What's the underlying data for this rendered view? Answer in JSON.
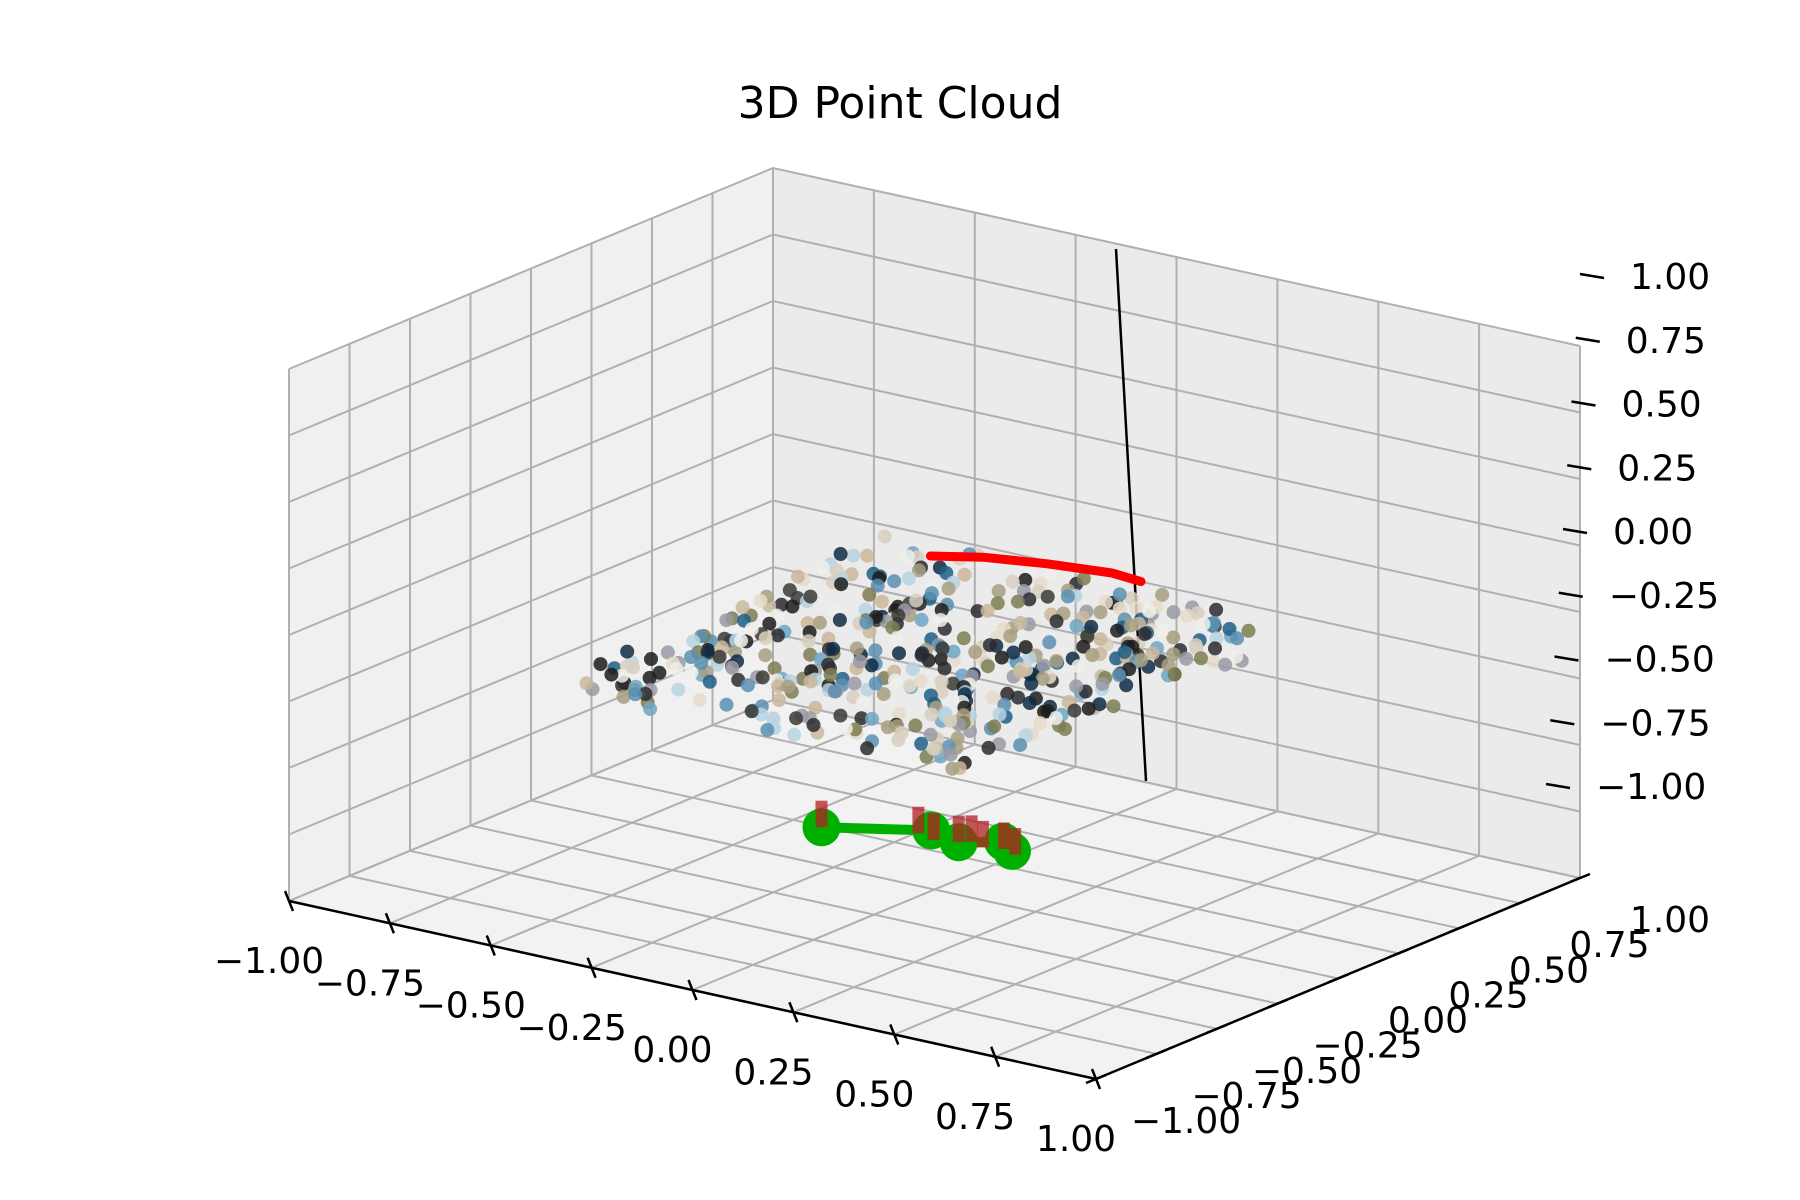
{
  "chart_data": {
    "type": "scatter",
    "projection": "3d",
    "title": "3D Point Cloud",
    "xlabel": "",
    "ylabel": "",
    "zlabel": "",
    "xlim": [
      -1.0,
      1.0
    ],
    "ylim": [
      -1.0,
      1.0
    ],
    "zlim": [
      -1.0,
      1.0
    ],
    "grid": true,
    "pane_color": "#f2f2f2",
    "x_ticks": [
      -1.0,
      -0.75,
      -0.5,
      -0.25,
      0.0,
      0.25,
      0.5,
      0.75,
      1.0
    ],
    "y_ticks": [
      -1.0,
      -0.75,
      -0.5,
      -0.25,
      0.0,
      0.25,
      0.5,
      0.75,
      1.0
    ],
    "z_ticks": [
      -1.0,
      -0.75,
      -0.5,
      -0.25,
      0.0,
      0.25,
      0.5,
      0.75,
      1.0
    ],
    "x_tick_labels": [
      "−1.00",
      "−0.75",
      "−0.50",
      "−0.25",
      "0.00",
      "0.25",
      "0.50",
      "0.75",
      "1.00"
    ],
    "y_tick_labels": [
      "−1.00",
      "−0.75",
      "−0.50",
      "−0.25",
      "0.00",
      "0.25",
      "0.50",
      "0.75",
      "1.00"
    ],
    "z_tick_labels": [
      "−1.00",
      "−0.75",
      "−0.50",
      "−0.25",
      "0.00",
      "0.25",
      "0.50",
      "0.75",
      "1.00"
    ],
    "series": [
      {
        "kind": "colored_point_cloud",
        "color_palette": [
          "#1c1c1c",
          "#3a3a36",
          "#e8dccb",
          "#c9b79a",
          "#1f5f86",
          "#6fa6c4",
          "#b7d3e2",
          "#7d7e52",
          "#2a2a30",
          "#9a9aa6",
          "#d8d0c0",
          "#0f2c44",
          "#a89f80",
          "#5b8fb0",
          "#eeeeea"
        ],
        "center": [
          -0.05,
          0.05,
          -0.15
        ],
        "extent": [
          0.5,
          0.7,
          0.05
        ],
        "count": 480
      },
      {
        "kind": "red_line",
        "color": "#ff0000",
        "points": [
          [
            -0.28,
            0.45,
            -0.01
          ],
          [
            -0.18,
            0.5,
            0.0
          ],
          [
            -0.05,
            0.55,
            0.0
          ],
          [
            0.08,
            0.6,
            -0.01
          ],
          [
            0.14,
            0.62,
            -0.03
          ]
        ]
      },
      {
        "kind": "green_markers",
        "color": "#00b000",
        "points": [
          [
            -0.28,
            0.0,
            -0.86
          ],
          [
            -0.08,
            0.12,
            -0.85
          ],
          [
            0.0,
            0.1,
            -0.86
          ],
          [
            0.08,
            0.15,
            -0.85
          ],
          [
            0.12,
            0.12,
            -0.86
          ]
        ]
      },
      {
        "kind": "red_bars",
        "color": "#b22222",
        "points": [
          [
            -0.28,
            0.0,
            -0.86
          ],
          [
            -0.1,
            0.1,
            -0.86
          ],
          [
            -0.05,
            0.08,
            -0.86
          ],
          [
            0.0,
            0.1,
            -0.86
          ],
          [
            0.02,
            0.12,
            -0.86
          ],
          [
            0.06,
            0.1,
            -0.86
          ],
          [
            0.1,
            0.12,
            -0.86
          ],
          [
            0.14,
            0.1,
            -0.86
          ]
        ],
        "height": 0.1
      }
    ]
  }
}
